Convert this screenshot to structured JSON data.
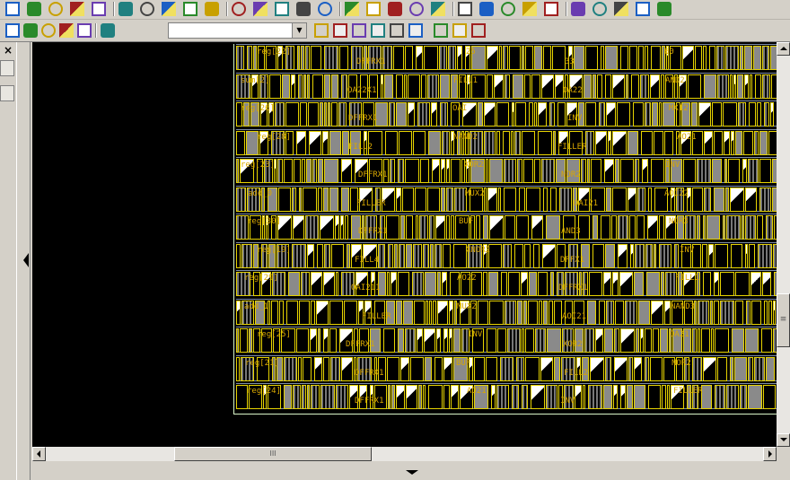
{
  "toolbar_top": {
    "icons": [
      "new-icon",
      "refresh-icon",
      "fit-icon",
      "zoom-in-icon",
      "zoom-area-icon",
      "zoom-in-small-icon",
      "zoom-out-icon",
      "pan-back-icon",
      "pan-forward-icon",
      "cut-icon",
      "undo-icon",
      "redo-icon",
      "undo-alt-icon",
      "redo-alt-icon",
      "rotate-icon",
      "flip-vertical-icon",
      "flip-horizontal-icon",
      "group-icon",
      "ab-label-icon",
      "hierarchy-icon",
      "grid-icon",
      "align-icon",
      "table-icon",
      "route-icon",
      "pin-icon",
      "select-mode-icon",
      "monitor-icon",
      "layers-icon",
      "palette-icon",
      "color-map-icon"
    ]
  },
  "toolbar_second": {
    "icons": [
      "search-binoculars-icon",
      "search-next-icon",
      "net-select-icon",
      "net-deselect-icon",
      "probe-icon",
      "arrow-probe-icon",
      "layer-visible-icon",
      "fill-icon",
      "pointer-icon",
      "text-ab-icon",
      "clear-marker-icon",
      "clear-all-icon",
      "save-view-icon",
      "copy-view-icon",
      "highlight-icon"
    ],
    "combo_value": ""
  },
  "side_panel": {
    "close_label": "×"
  },
  "layout": {
    "border_color": "#d8f4c8",
    "cell_color": "#e6d300",
    "label_color": "#d9a800",
    "track_color": "#7e8eaa",
    "row_labels": [
      [
        "reg[22]",
        "DFFRX1",
        "25",
        "33",
        "60"
      ],
      [
        "sum[2]",
        "OA22X1",
        "FILL1",
        "OA22",
        "AND2"
      ],
      [
        "reg[26]",
        "DFFRX1",
        "OAI",
        "INV",
        "MXI2"
      ],
      [
        "reg[28]",
        "FILL2",
        "NAND2",
        "FILLER",
        "AO21"
      ],
      [
        "reg[23]",
        "DFFRX1",
        "XOR2",
        "NOR2",
        "INV"
      ],
      [
        "add_0",
        "FILLER",
        "MUX2",
        "OAI21",
        "AOI22"
      ],
      [
        "reg[30]",
        "DFFRX1",
        "BUF",
        "AND3",
        "NOR3"
      ],
      [
        "reg[19]",
        "FILL4",
        "XNOR2",
        "DFFX1",
        "INV"
      ],
      [
        "reg[29]",
        "OAI211",
        "AO22",
        "DFFRX1",
        "FILL1"
      ],
      [
        "add_1",
        "FILLER",
        "MUX2",
        "AOI21",
        "NAND3"
      ],
      [
        "reg[25]",
        "DFFRX1",
        "INV",
        "XOR2",
        "OA21"
      ],
      [
        "reg[21]",
        "DFFRX1",
        "BUF",
        "FILL2",
        "NOR2"
      ],
      [
        "reg[24]",
        "DFFRX1",
        "AO21",
        "INV",
        "FILLER"
      ]
    ]
  },
  "scrollbars": {
    "horizontal_thumb_label": "III",
    "vertical_thumb_label": "≡"
  }
}
